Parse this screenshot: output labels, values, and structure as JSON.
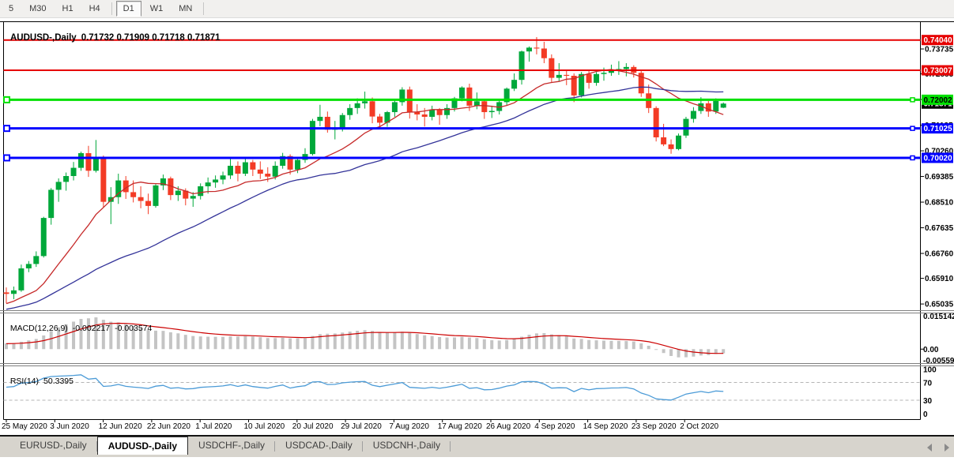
{
  "toolbar": {
    "timeframes": [
      "5",
      "M30",
      "H1",
      "H4",
      "D1",
      "W1",
      "MN"
    ],
    "active": "D1",
    "separators_after": [
      "H4",
      "MN"
    ]
  },
  "chart": {
    "symbol_title": "AUDUSD-,Daily",
    "ohlc_line": "0.71732 0.71909 0.71718 0.71871"
  },
  "chart_data": {
    "type": "candlestick",
    "symbol": "AUDUSD-",
    "timeframe": "Daily",
    "current_bar": {
      "open": 0.71732,
      "high": 0.71909,
      "low": 0.71718,
      "close": 0.71871
    },
    "price_range": {
      "top": 0.74651,
      "bottom": 0.64849
    },
    "price_axis_ticks": [
      "0.73735",
      "0.72885",
      "0.72010",
      "0.71135",
      "0.70260",
      "0.69385",
      "0.68510",
      "0.67635",
      "0.66760",
      "0.65910",
      "0.65035"
    ],
    "current_price_badge": {
      "price": 0.71871,
      "text": "0.71871",
      "bg": "#000000",
      "fg": "#ffffff"
    },
    "levels": [
      {
        "price": 0.7404,
        "text": "0.74040",
        "color": "#e60000",
        "fg": "#ffffff",
        "width": 2,
        "marker": false
      },
      {
        "price": 0.73007,
        "text": "0.73007",
        "color": "#e60000",
        "fg": "#ffffff",
        "width": 2,
        "marker": false
      },
      {
        "price": 0.72002,
        "text": "0.72002",
        "color": "#00e000",
        "fg": "#000000",
        "width": 3,
        "marker": true
      },
      {
        "price": 0.71025,
        "text": "0.71025",
        "color": "#0000ff",
        "fg": "#ffffff",
        "width": 3,
        "marker": true
      },
      {
        "price": 0.7002,
        "text": "0.70020",
        "color": "#0000ff",
        "fg": "#ffffff",
        "width": 3,
        "marker": true
      }
    ],
    "bull_color": "#00a83a",
    "bear_color": "#f33b25",
    "ma_fast": {
      "period": 13,
      "color": "#c62a2a"
    },
    "ma_slow": {
      "period": 34,
      "color": "#333399"
    },
    "date_ticks": [
      "25 May 2020",
      "3 Jun 2020",
      "12 Jun 2020",
      "22 Jun 2020",
      "1 Jul 2020",
      "10 Jul 2020",
      "20 Jul 2020",
      "29 Jul 2020",
      "7 Aug 2020",
      "17 Aug 2020",
      "26 Aug 2020",
      "4 Sep 2020",
      "14 Sep 2020",
      "23 Sep 2020",
      "2 Oct 2020"
    ],
    "pre_closes": [
      0.635,
      0.639,
      0.642,
      0.6445,
      0.641,
      0.6375,
      0.6415,
      0.644,
      0.6465,
      0.6495,
      0.653,
      0.6505,
      0.647,
      0.644,
      0.647,
      0.652,
      0.655,
      0.6575,
      0.6545,
      0.6525,
      0.6495,
      0.6465,
      0.644,
      0.6465,
      0.649,
      0.651,
      0.6485,
      0.646,
      0.6485,
      0.6515,
      0.654,
      0.656,
      0.6545,
      0.653
    ],
    "candles": [
      [
        0.6543,
        0.656,
        0.6506,
        0.6538
      ],
      [
        0.6538,
        0.6563,
        0.652,
        0.655
      ],
      [
        0.655,
        0.6638,
        0.6545,
        0.6625
      ],
      [
        0.6625,
        0.665,
        0.6612,
        0.664
      ],
      [
        0.664,
        0.6683,
        0.663,
        0.6667
      ],
      [
        0.6667,
        0.6801,
        0.6662,
        0.6797
      ],
      [
        0.6797,
        0.6899,
        0.6774,
        0.6893
      ],
      [
        0.6893,
        0.6932,
        0.6852,
        0.692
      ],
      [
        0.692,
        0.6952,
        0.689,
        0.694
      ],
      [
        0.694,
        0.6988,
        0.6925,
        0.6968
      ],
      [
        0.6968,
        0.7023,
        0.6958,
        0.7018
      ],
      [
        0.7018,
        0.7043,
        0.6937,
        0.6958
      ],
      [
        0.6958,
        0.7063,
        0.6952,
        0.7
      ],
      [
        0.7,
        0.701,
        0.6832,
        0.6852
      ],
      [
        0.6852,
        0.6902,
        0.6776,
        0.6868
      ],
      [
        0.6868,
        0.6948,
        0.6845,
        0.6925
      ],
      [
        0.6925,
        0.694,
        0.6862,
        0.6885
      ],
      [
        0.6885,
        0.6925,
        0.685,
        0.6868
      ],
      [
        0.6868,
        0.6905,
        0.683,
        0.6855
      ],
      [
        0.6855,
        0.688,
        0.681,
        0.6838
      ],
      [
        0.6838,
        0.6912,
        0.6832,
        0.6908
      ],
      [
        0.6908,
        0.6945,
        0.6892,
        0.6932
      ],
      [
        0.6932,
        0.6938,
        0.6858,
        0.6875
      ],
      [
        0.6875,
        0.6905,
        0.6855,
        0.689
      ],
      [
        0.689,
        0.6898,
        0.684,
        0.6863
      ],
      [
        0.6863,
        0.6885,
        0.6835,
        0.6872
      ],
      [
        0.6872,
        0.6915,
        0.686,
        0.6905
      ],
      [
        0.6905,
        0.6935,
        0.688,
        0.6918
      ],
      [
        0.6918,
        0.6942,
        0.69,
        0.6928
      ],
      [
        0.6928,
        0.6955,
        0.6912,
        0.6942
      ],
      [
        0.6942,
        0.6998,
        0.693,
        0.6975
      ],
      [
        0.6975,
        0.699,
        0.6922,
        0.6948
      ],
      [
        0.6948,
        0.6999,
        0.694,
        0.6987
      ],
      [
        0.6987,
        0.6995,
        0.694,
        0.6962
      ],
      [
        0.6962,
        0.699,
        0.693,
        0.6948
      ],
      [
        0.6948,
        0.697,
        0.692,
        0.6938
      ],
      [
        0.6938,
        0.699,
        0.6928,
        0.6975
      ],
      [
        0.6975,
        0.7019,
        0.6965,
        0.7008
      ],
      [
        0.7008,
        0.7014,
        0.6945,
        0.6962
      ],
      [
        0.6962,
        0.7005,
        0.695,
        0.6995
      ],
      [
        0.6995,
        0.7035,
        0.6985,
        0.7015
      ],
      [
        0.7015,
        0.7135,
        0.701,
        0.7128
      ],
      [
        0.7128,
        0.7183,
        0.711,
        0.7142
      ],
      [
        0.7142,
        0.716,
        0.7088,
        0.7098
      ],
      [
        0.7098,
        0.7128,
        0.7065,
        0.7103
      ],
      [
        0.7103,
        0.7155,
        0.7092,
        0.7148
      ],
      [
        0.7148,
        0.7185,
        0.7132,
        0.7172
      ],
      [
        0.7172,
        0.7205,
        0.7152,
        0.7188
      ],
      [
        0.7188,
        0.7228,
        0.717,
        0.7195
      ],
      [
        0.7195,
        0.7208,
        0.712,
        0.7143
      ],
      [
        0.7143,
        0.7152,
        0.71,
        0.7122
      ],
      [
        0.7122,
        0.7162,
        0.7108,
        0.7158
      ],
      [
        0.7158,
        0.72,
        0.7142,
        0.7192
      ],
      [
        0.7192,
        0.7243,
        0.718,
        0.7235
      ],
      [
        0.7235,
        0.7245,
        0.7136,
        0.7158
      ],
      [
        0.7158,
        0.7185,
        0.713,
        0.715
      ],
      [
        0.715,
        0.7172,
        0.7109,
        0.7142
      ],
      [
        0.7142,
        0.718,
        0.713,
        0.7165
      ],
      [
        0.7165,
        0.7172,
        0.7115,
        0.7148
      ],
      [
        0.7148,
        0.7185,
        0.7135,
        0.7172
      ],
      [
        0.7172,
        0.721,
        0.716,
        0.7205
      ],
      [
        0.7205,
        0.7246,
        0.7195,
        0.7242
      ],
      [
        0.7242,
        0.7255,
        0.7162,
        0.718
      ],
      [
        0.718,
        0.7225,
        0.7168,
        0.7195
      ],
      [
        0.7195,
        0.72,
        0.7135,
        0.7158
      ],
      [
        0.7158,
        0.718,
        0.7138,
        0.7162
      ],
      [
        0.7162,
        0.7198,
        0.715,
        0.7192
      ],
      [
        0.7192,
        0.7242,
        0.718,
        0.7238
      ],
      [
        0.7238,
        0.729,
        0.723,
        0.7268
      ],
      [
        0.7268,
        0.7368,
        0.7252,
        0.7365
      ],
      [
        0.7365,
        0.7382,
        0.733,
        0.7378
      ],
      [
        0.7378,
        0.7414,
        0.7355,
        0.7375
      ],
      [
        0.7375,
        0.7398,
        0.7325,
        0.7342
      ],
      [
        0.7342,
        0.7355,
        0.7258,
        0.7275
      ],
      [
        0.7275,
        0.7325,
        0.7262,
        0.7285
      ],
      [
        0.7285,
        0.7302,
        0.725,
        0.7282
      ],
      [
        0.7282,
        0.729,
        0.7192,
        0.7215
      ],
      [
        0.7215,
        0.7295,
        0.7208,
        0.7288
      ],
      [
        0.7288,
        0.7302,
        0.7238,
        0.7258
      ],
      [
        0.7258,
        0.7295,
        0.7248,
        0.7288
      ],
      [
        0.7288,
        0.731,
        0.7265,
        0.7292
      ],
      [
        0.7292,
        0.732,
        0.7282,
        0.7302
      ],
      [
        0.7302,
        0.7332,
        0.7285,
        0.7305
      ],
      [
        0.7305,
        0.7325,
        0.728,
        0.7312
      ],
      [
        0.7312,
        0.7318,
        0.7276,
        0.7292
      ],
      [
        0.7292,
        0.7298,
        0.721,
        0.7222
      ],
      [
        0.7222,
        0.7252,
        0.7155,
        0.7172
      ],
      [
        0.7172,
        0.7178,
        0.7058,
        0.7072
      ],
      [
        0.7072,
        0.7118,
        0.7042,
        0.7048
      ],
      [
        0.7048,
        0.7065,
        0.7016,
        0.7032
      ],
      [
        0.7032,
        0.7085,
        0.7028,
        0.7078
      ],
      [
        0.7078,
        0.7142,
        0.707,
        0.7135
      ],
      [
        0.7135,
        0.7175,
        0.7122,
        0.7162
      ],
      [
        0.7162,
        0.7209,
        0.7152,
        0.7188
      ],
      [
        0.7188,
        0.7196,
        0.7142,
        0.716
      ],
      [
        0.716,
        0.7205,
        0.7152,
        0.7196
      ],
      [
        0.71732,
        0.71909,
        0.71718,
        0.71871
      ]
    ],
    "macd": {
      "label": "MACD(12,26,9)",
      "value": "-0.002217",
      "signal_value": "-0.003574",
      "fast": 12,
      "slow": 26,
      "signal": 9,
      "axis_labels": [
        "0.015142",
        "0.00",
        "-0.005595"
      ],
      "scale_max": 0.015142,
      "scale_min": -0.005595,
      "hist_color": "#c4c4c4",
      "signal_color": "#cc0000"
    },
    "rsi": {
      "label": "RSI(14)",
      "value": "50.3395",
      "period": 14,
      "axis_labels": [
        "100",
        "70",
        "30",
        "0"
      ],
      "level_lines": [
        70,
        30
      ],
      "line_color": "#4b9bd7"
    }
  },
  "tabs": [
    {
      "label": "EURUSD-,Daily",
      "active": false
    },
    {
      "label": "AUDUSD-,Daily",
      "active": true
    },
    {
      "label": "USDCHF-,Daily",
      "active": false
    },
    {
      "label": "USDCAD-,Daily",
      "active": false
    },
    {
      "label": "USDCNH-,Daily",
      "active": false
    }
  ]
}
